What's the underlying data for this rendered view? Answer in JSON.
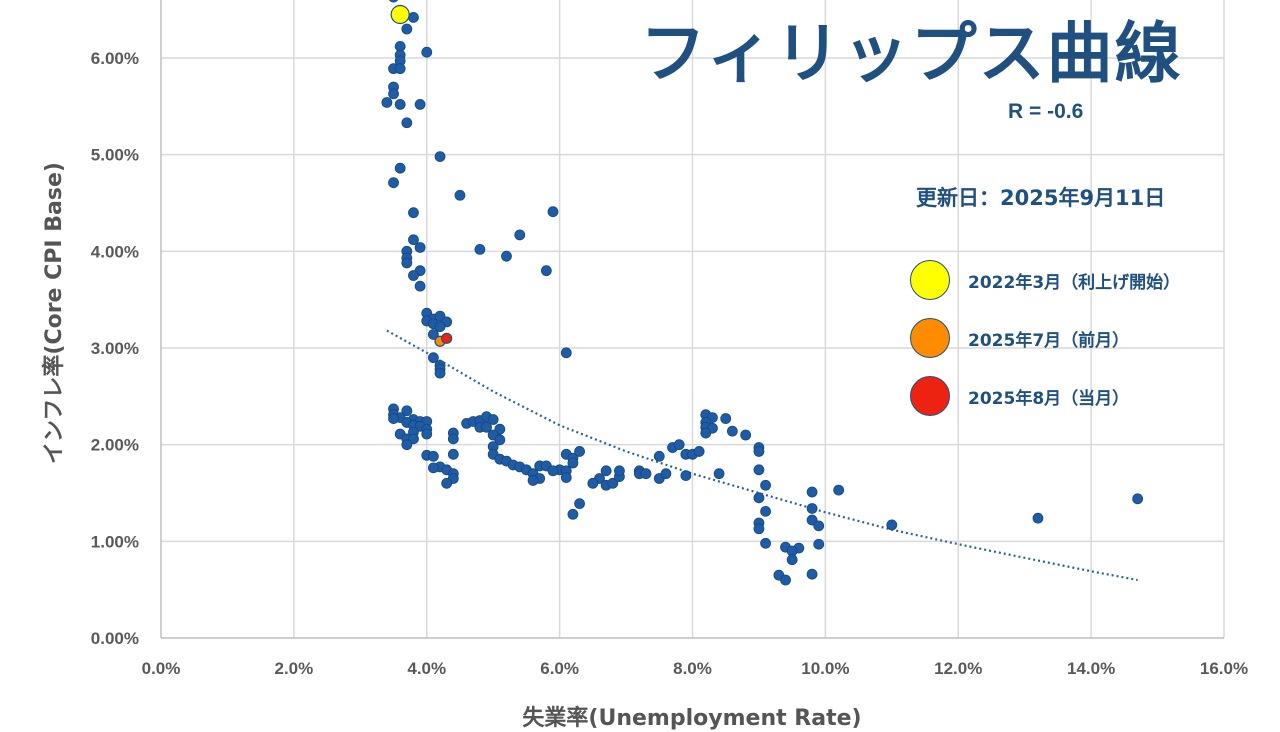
{
  "chart_data": {
    "type": "scatter",
    "title": "フィリップス曲線",
    "annotation_r": "R = -0.6",
    "updated": "更新日：2025年9月11日",
    "xlabel": "失業率(Unemployment Rate)",
    "ylabel": "インフレ率(Core CPI Base)",
    "xlim": [
      0,
      16
    ],
    "ylim": [
      0,
      6.6
    ],
    "x_ticks": [
      0,
      2,
      4,
      6,
      8,
      10,
      12,
      14,
      16
    ],
    "x_tick_labels": [
      "0.0%",
      "2.0%",
      "4.0%",
      "6.0%",
      "8.0%",
      "10.0%",
      "12.0%",
      "14.0%",
      "16.0%"
    ],
    "y_ticks": [
      0,
      1,
      2,
      3,
      4,
      5,
      6
    ],
    "y_tick_labels": [
      "0.00%",
      "1.00%",
      "2.00%",
      "3.00%",
      "4.00%",
      "5.00%",
      "6.00%"
    ],
    "grid": true,
    "trendline": {
      "style": "dotted",
      "x": [
        3.4,
        4.0,
        5.0,
        6.0,
        7.0,
        8.0,
        9.0,
        10.0,
        11.0,
        12.0,
        13.0,
        14.0,
        14.7
      ],
      "y": [
        3.18,
        2.95,
        2.55,
        2.2,
        1.93,
        1.7,
        1.5,
        1.3,
        1.12,
        0.97,
        0.83,
        0.69,
        0.6
      ]
    },
    "colors": {
      "points": "#1f5ba6",
      "outline": "#1f5080",
      "trend": "#2a6496",
      "grid": "#d9d9d9",
      "highlight_2022_03": "#ffff00",
      "highlight_2025_07": "#ff8c00",
      "highlight_2025_08": "#ee2211"
    },
    "series": [
      {
        "points": [
          [
            3.5,
            6.63
          ],
          [
            3.8,
            6.42
          ],
          [
            3.7,
            6.3
          ],
          [
            3.6,
            6.12
          ],
          [
            3.6,
            6.03
          ],
          [
            4.0,
            6.06
          ],
          [
            3.6,
            5.97
          ],
          [
            3.5,
            5.89
          ],
          [
            3.6,
            5.89
          ],
          [
            3.5,
            5.7
          ],
          [
            3.5,
            5.63
          ],
          [
            3.4,
            5.54
          ],
          [
            3.6,
            5.52
          ],
          [
            3.9,
            5.52
          ],
          [
            3.7,
            5.33
          ],
          [
            4.2,
            4.98
          ],
          [
            3.6,
            4.86
          ],
          [
            3.5,
            4.71
          ],
          [
            4.5,
            4.58
          ],
          [
            5.9,
            4.41
          ],
          [
            3.8,
            4.4
          ],
          [
            5.4,
            4.17
          ],
          [
            3.8,
            4.12
          ],
          [
            3.9,
            4.04
          ],
          [
            3.7,
            4.0
          ],
          [
            4.8,
            4.02
          ],
          [
            3.7,
            3.93
          ],
          [
            5.2,
            3.95
          ],
          [
            3.7,
            3.88
          ],
          [
            3.9,
            3.8
          ],
          [
            5.8,
            3.8
          ],
          [
            3.8,
            3.75
          ],
          [
            3.9,
            3.64
          ],
          [
            4.0,
            3.36
          ],
          [
            4.1,
            3.3
          ],
          [
            4.2,
            3.33
          ],
          [
            4.0,
            3.28
          ],
          [
            4.3,
            3.27
          ],
          [
            4.1,
            3.25
          ],
          [
            4.2,
            3.22
          ],
          [
            4.1,
            3.14
          ],
          [
            6.1,
            2.95
          ],
          [
            4.1,
            2.9
          ],
          [
            4.2,
            2.82
          ],
          [
            4.2,
            2.78
          ],
          [
            4.2,
            2.74
          ],
          [
            3.5,
            2.37
          ],
          [
            3.7,
            2.35
          ],
          [
            3.5,
            2.31
          ],
          [
            3.6,
            2.28
          ],
          [
            3.5,
            2.27
          ],
          [
            3.8,
            2.26
          ],
          [
            3.9,
            2.24
          ],
          [
            4.0,
            2.24
          ],
          [
            3.7,
            2.23
          ],
          [
            3.8,
            2.2
          ],
          [
            3.9,
            2.19
          ],
          [
            4.0,
            2.16
          ],
          [
            3.8,
            2.13
          ],
          [
            3.6,
            2.11
          ],
          [
            4.0,
            2.11
          ],
          [
            3.7,
            2.06
          ],
          [
            3.8,
            2.06
          ],
          [
            3.7,
            2.0
          ],
          [
            4.4,
            2.12
          ],
          [
            4.4,
            2.06
          ],
          [
            4.6,
            2.22
          ],
          [
            4.7,
            2.24
          ],
          [
            4.8,
            2.25
          ],
          [
            4.9,
            2.29
          ],
          [
            5.0,
            2.26
          ],
          [
            4.8,
            2.18
          ],
          [
            4.9,
            2.18
          ],
          [
            5.1,
            2.16
          ],
          [
            5.0,
            2.1
          ],
          [
            5.1,
            2.05
          ],
          [
            5.0,
            1.98
          ],
          [
            4.4,
            1.9
          ],
          [
            4.0,
            1.89
          ],
          [
            4.1,
            1.88
          ],
          [
            5.0,
            1.9
          ],
          [
            5.1,
            1.85
          ],
          [
            5.2,
            1.83
          ],
          [
            5.3,
            1.79
          ],
          [
            5.4,
            1.77
          ],
          [
            5.7,
            1.78
          ],
          [
            5.8,
            1.78
          ],
          [
            6.0,
            1.74
          ],
          [
            5.9,
            1.73
          ],
          [
            5.5,
            1.74
          ],
          [
            5.6,
            1.7
          ],
          [
            5.7,
            1.65
          ],
          [
            5.6,
            1.63
          ],
          [
            4.2,
            1.77
          ],
          [
            4.1,
            1.76
          ],
          [
            4.3,
            1.74
          ],
          [
            4.4,
            1.7
          ],
          [
            4.4,
            1.65
          ],
          [
            4.3,
            1.6
          ],
          [
            6.1,
            1.9
          ],
          [
            6.2,
            1.86
          ],
          [
            6.3,
            1.93
          ],
          [
            6.2,
            1.81
          ],
          [
            6.1,
            1.73
          ],
          [
            6.1,
            1.66
          ],
          [
            6.3,
            1.39
          ],
          [
            6.2,
            1.28
          ],
          [
            6.7,
            1.73
          ],
          [
            6.6,
            1.65
          ],
          [
            6.5,
            1.6
          ],
          [
            6.7,
            1.58
          ],
          [
            6.8,
            1.6
          ],
          [
            6.9,
            1.67
          ],
          [
            6.9,
            1.73
          ],
          [
            7.2,
            1.73
          ],
          [
            7.2,
            1.7
          ],
          [
            7.3,
            1.7
          ],
          [
            7.5,
            1.88
          ],
          [
            7.7,
            1.97
          ],
          [
            7.8,
            2.0
          ],
          [
            7.9,
            1.9
          ],
          [
            8.0,
            1.9
          ],
          [
            8.1,
            1.93
          ],
          [
            7.5,
            1.65
          ],
          [
            7.6,
            1.7
          ],
          [
            7.9,
            1.68
          ],
          [
            8.2,
            2.31
          ],
          [
            8.3,
            2.28
          ],
          [
            8.5,
            2.27
          ],
          [
            8.2,
            2.23
          ],
          [
            8.2,
            2.18
          ],
          [
            8.3,
            2.17
          ],
          [
            8.6,
            2.14
          ],
          [
            8.2,
            2.12
          ],
          [
            8.8,
            2.1
          ],
          [
            9.0,
            1.97
          ],
          [
            9.0,
            1.93
          ],
          [
            8.4,
            1.7
          ],
          [
            9.0,
            1.74
          ],
          [
            9.1,
            1.58
          ],
          [
            9.0,
            1.45
          ],
          [
            9.1,
            1.31
          ],
          [
            9.0,
            1.19
          ],
          [
            9.0,
            1.13
          ],
          [
            9.1,
            0.98
          ],
          [
            9.4,
            0.94
          ],
          [
            9.6,
            0.93
          ],
          [
            9.5,
            0.9
          ],
          [
            9.5,
            0.81
          ],
          [
            9.3,
            0.65
          ],
          [
            9.4,
            0.6
          ],
          [
            9.8,
            1.51
          ],
          [
            9.8,
            1.34
          ],
          [
            9.8,
            1.22
          ],
          [
            9.9,
            1.16
          ],
          [
            9.9,
            0.97
          ],
          [
            9.8,
            0.66
          ],
          [
            10.2,
            1.53
          ],
          [
            11.0,
            1.17
          ],
          [
            13.2,
            1.24
          ],
          [
            14.7,
            1.44
          ]
        ]
      }
    ],
    "highlights": [
      {
        "label": "2022年3月（利上げ開始）",
        "x": 3.6,
        "y": 6.45,
        "color": "#ffff00"
      },
      {
        "label": "2025年7月（前月）",
        "x": 4.2,
        "y": 3.07,
        "color": "#ff8c00"
      },
      {
        "label": "2025年8月（当月）",
        "x": 4.3,
        "y": 3.1,
        "color": "#ee2211"
      }
    ]
  }
}
